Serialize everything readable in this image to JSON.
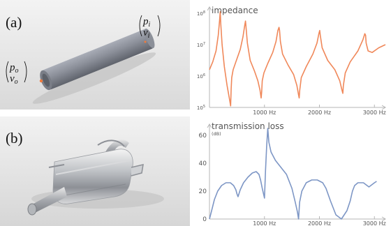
{
  "panels": {
    "a": {
      "letter": "(a)",
      "vec_in": [
        "p",
        "i",
        "v",
        "i"
      ],
      "vec_out": [
        "p",
        "o",
        "v",
        "o"
      ]
    },
    "b": {
      "letter": "(b)"
    }
  },
  "chart_data": [
    {
      "type": "line",
      "title": "impedance",
      "log_y": true,
      "y_ticks": [
        {
          "base": "10",
          "exp": "8"
        },
        {
          "base": "10",
          "exp": "7"
        },
        {
          "base": "10",
          "exp": "6"
        },
        {
          "base": "10",
          "exp": "5"
        }
      ],
      "x_ticks": [
        "1000 Hz",
        "2000 Hz",
        "3000 Hz"
      ],
      "xlim": [
        0,
        3200
      ],
      "ylim_log10": [
        5,
        8.2
      ],
      "series": [
        {
          "color": "#f0885a",
          "x": [
            0,
            60,
            120,
            160,
            185,
            195,
            205,
            230,
            270,
            320,
            360,
            385,
            395,
            405,
            430,
            480,
            560,
            610,
            640,
            655,
            665,
            690,
            740,
            820,
            880,
            920,
            940,
            950,
            960,
            990,
            1060,
            1150,
            1210,
            1245,
            1265,
            1275,
            1290,
            1330,
            1430,
            1530,
            1590,
            1620,
            1632,
            1642,
            1670,
            1760,
            1880,
            1955,
            1990,
            2005,
            2015,
            2050,
            2150,
            2280,
            2370,
            2410,
            2425,
            2435,
            2470,
            2560,
            2700,
            2790,
            2825,
            2840,
            2850,
            2885,
            2960,
            3080,
            3200
          ],
          "y": [
            6.2,
            6.45,
            6.8,
            7.3,
            7.8,
            8.05,
            7.7,
            7.0,
            6.3,
            5.7,
            5.3,
            5.05,
            5.6,
            5.95,
            6.2,
            6.45,
            6.85,
            7.25,
            7.6,
            7.75,
            7.55,
            7.05,
            6.5,
            6.15,
            5.85,
            5.55,
            5.3,
            5.5,
            5.85,
            6.1,
            6.4,
            6.75,
            7.1,
            7.45,
            7.55,
            7.45,
            7.1,
            6.7,
            6.35,
            6.05,
            5.7,
            5.4,
            5.3,
            5.55,
            5.95,
            6.3,
            6.7,
            7.05,
            7.35,
            7.45,
            7.3,
            6.9,
            6.5,
            6.2,
            5.85,
            5.55,
            5.45,
            5.7,
            6.1,
            6.45,
            6.8,
            7.15,
            7.35,
            7.3,
            7.05,
            6.8,
            6.75,
            6.9,
            7.0
          ]
        }
      ]
    },
    {
      "type": "line",
      "title": "transmission loss",
      "unit": "(dB)",
      "y_ticks": [
        "60",
        "40",
        "20",
        "0"
      ],
      "x_ticks": [
        "1000 Hz",
        "2000 Hz",
        "3000 Hz"
      ],
      "xlim": [
        0,
        3200
      ],
      "ylim": [
        0,
        68
      ],
      "series": [
        {
          "color": "#7d96c5",
          "x": [
            0,
            40,
            90,
            150,
            220,
            300,
            380,
            440,
            480,
            500,
            520,
            560,
            620,
            700,
            780,
            850,
            900,
            930,
            960,
            1000,
            1020,
            1040,
            1060,
            1080,
            1120,
            1200,
            1300,
            1400,
            1500,
            1560,
            1600,
            1620,
            1640,
            1680,
            1760,
            1860,
            1960,
            2060,
            2120,
            2200,
            2300,
            2400,
            2500,
            2560,
            2600,
            2640,
            2700,
            2800,
            2900,
            3000,
            3040
          ],
          "y": [
            0,
            6,
            14,
            20,
            24,
            26,
            26,
            24,
            21,
            18,
            16,
            21,
            26,
            30,
            33,
            34,
            32,
            28,
            22,
            15,
            35,
            52,
            65,
            55,
            48,
            42,
            37,
            32,
            22,
            12,
            5,
            0,
            12,
            20,
            26,
            28,
            28,
            26,
            22,
            13,
            3,
            0,
            6,
            13,
            20,
            24,
            26,
            26,
            23,
            26,
            27
          ]
        }
      ]
    }
  ]
}
